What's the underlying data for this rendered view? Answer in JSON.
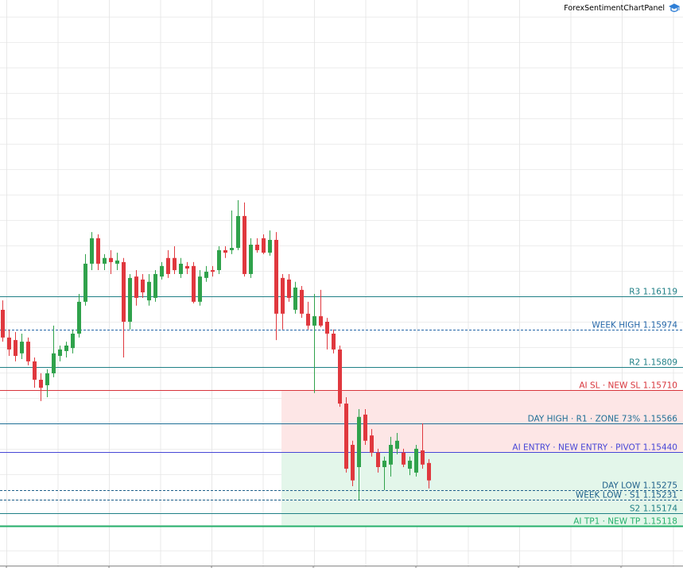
{
  "panel_title": "ForexSentimentChartPanel",
  "chart_data": {
    "type": "candlestick",
    "ylim": [
      1.14934,
      1.17411
    ],
    "up_color": "#2fa24b",
    "down_color": "#e0383e",
    "open": [
      1.1606,
      1.15939,
      1.15928,
      1.1587,
      1.15921,
      1.15835,
      1.15755,
      1.15731,
      1.15783,
      1.15859,
      1.1588,
      1.15893,
      1.15956,
      1.16095,
      1.16261,
      1.16372,
      1.16261,
      1.16286,
      1.16261,
      1.16268,
      1.16008,
      1.16205,
      1.16192,
      1.16101,
      1.16112,
      1.16205,
      1.16286,
      1.16286,
      1.16216,
      1.16251,
      1.16251,
      1.16095,
      1.16199,
      1.16233,
      1.16233,
      1.1632,
      1.1632,
      1.1633,
      1.16469,
      1.16216,
      1.16344,
      1.16372,
      1.16309,
      1.16365,
      1.16199,
      1.16192,
      1.1606,
      1.16147,
      1.16043,
      1.15991,
      1.16032,
      1.16008,
      1.15956,
      1.15887,
      1.15651,
      1.15471,
      1.15374,
      1.15603,
      1.15512,
      1.15437,
      1.15374,
      1.15385,
      1.15454,
      1.15437,
      1.15367,
      1.1535,
      1.15447,
      1.15392
    ],
    "high": [
      1.16101,
      1.15974,
      1.15963,
      1.15956,
      1.15939,
      1.15852,
      1.15783,
      1.15801,
      1.15991,
      1.15904,
      1.15921,
      1.15974,
      1.16129,
      1.16303,
      1.16399,
      1.16389,
      1.16303,
      1.1632,
      1.16309,
      1.16286,
      1.16216,
      1.16233,
      1.16216,
      1.16216,
      1.16233,
      1.16268,
      1.1632,
      1.16337,
      1.16286,
      1.16268,
      1.16268,
      1.16233,
      1.16251,
      1.16251,
      1.16337,
      1.16337,
      1.16493,
      1.16538,
      1.16528,
      1.16372,
      1.16372,
      1.16389,
      1.16406,
      1.16399,
      1.16216,
      1.16216,
      1.16182,
      1.16164,
      1.16095,
      1.16129,
      1.16147,
      1.16025,
      1.15974,
      1.15904,
      1.15679,
      1.15489,
      1.15627,
      1.15627,
      1.1554,
      1.15454,
      1.1542,
      1.15506,
      1.15523,
      1.15454,
      1.1542,
      1.15471,
      1.15565,
      1.15409
    ],
    "low": [
      1.15921,
      1.15859,
      1.15835,
      1.15845,
      1.15818,
      1.1572,
      1.15662,
      1.15679,
      1.15766,
      1.15835,
      1.15852,
      1.1587,
      1.15939,
      1.16078,
      1.16233,
      1.16233,
      1.16233,
      1.16216,
      1.16233,
      1.15852,
      1.15974,
      1.16078,
      1.16112,
      1.16078,
      1.16095,
      1.16192,
      1.16199,
      1.16216,
      1.16199,
      1.16216,
      1.16088,
      1.16078,
      1.16182,
      1.16205,
      1.16216,
      1.16286,
      1.16303,
      1.1632,
      1.16205,
      1.16199,
      1.16309,
      1.16303,
      1.16296,
      1.15928,
      1.15974,
      1.16095,
      1.16043,
      1.16025,
      1.15974,
      1.15697,
      1.15984,
      1.15887,
      1.1587,
      1.15637,
      1.1535,
      1.15291,
      1.15229,
      1.15471,
      1.1542,
      1.1535,
      1.15274,
      1.15333,
      1.1543,
      1.15374,
      1.15339,
      1.15333,
      1.15367,
      1.15281
    ],
    "close": [
      1.15939,
      1.15887,
      1.15859,
      1.15921,
      1.15835,
      1.15755,
      1.1572,
      1.15783,
      1.1587,
      1.15887,
      1.15904,
      1.15956,
      1.16095,
      1.16261,
      1.16372,
      1.16261,
      1.16286,
      1.16268,
      1.16275,
      1.16008,
      1.16199,
      1.16112,
      1.16136,
      1.16182,
      1.16216,
      1.16251,
      1.16216,
      1.16233,
      1.16261,
      1.1624,
      1.16095,
      1.16205,
      1.16226,
      1.16226,
      1.1632,
      1.16309,
      1.1633,
      1.16469,
      1.16216,
      1.16344,
      1.1632,
      1.16309,
      1.16365,
      1.16043,
      1.16043,
      1.16112,
      1.16157,
      1.16043,
      1.15991,
      1.16032,
      1.15991,
      1.15956,
      1.15887,
      1.15651,
      1.15367,
      1.15316,
      1.15593,
      1.15489,
      1.15437,
      1.15374,
      1.15402,
      1.15471,
      1.15489,
      1.15385,
      1.15402,
      1.15454,
      1.15385,
      1.15316
    ],
    "levels": [
      {
        "label": "R3 1.16119",
        "value": 1.16119,
        "color": "#1f7f86",
        "dashed": false
      },
      {
        "label": "WEEK HIGH 1.15974",
        "value": 1.15974,
        "color": "#2466a8",
        "dashed": true
      },
      {
        "label": "R2 1.15809",
        "value": 1.15809,
        "color": "#1f7f86",
        "dashed": false
      },
      {
        "label": "AI SL · NEW SL 1.15710",
        "value": 1.1571,
        "color": "#d8343b",
        "dashed": false
      },
      {
        "label": "DAY HIGH · R1 · ZONE 73% 1.15566",
        "value": 1.15566,
        "color": "#1f6f96",
        "dashed": false
      },
      {
        "label": "AI ENTRY · NEW ENTRY · PIVOT 1.15440",
        "value": 1.1544,
        "color": "#4646d6",
        "dashed": false
      },
      {
        "label": "DAY LOW 1.15275",
        "value": 1.15275,
        "color": "#1d5f8a",
        "dashed": true
      },
      {
        "label": "WEEK LOW · S1 1.15231",
        "value": 1.15231,
        "color": "#1d5f8a",
        "dashed": true
      },
      {
        "label": "S2 1.15174",
        "value": 1.15174,
        "color": "#1f7f86",
        "dashed": false
      },
      {
        "label": "AI TP1 · NEW TP 1.15118",
        "value": 1.15118,
        "color": "#25b06b",
        "dashed": false
      }
    ],
    "zones": [
      {
        "from_level": 5,
        "to_level": 3,
        "color": "#fde6e6"
      },
      {
        "from_level": 5,
        "to_level": 9,
        "color": "#e3f6ea"
      }
    ]
  }
}
